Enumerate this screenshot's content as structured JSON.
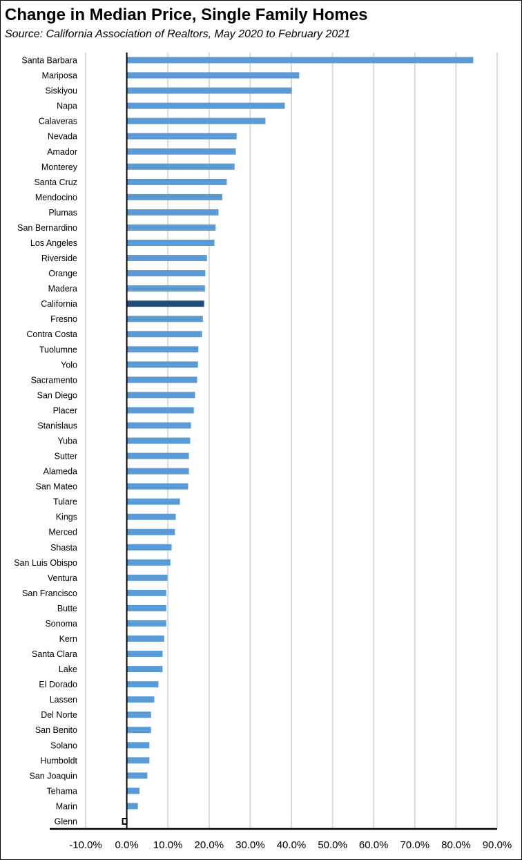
{
  "chart_data": {
    "type": "bar",
    "orientation": "horizontal",
    "title": "Change in Median Price, Single Family Homes",
    "subtitle": "Source:  California Association of Realtors, May 2020 to February 2021",
    "xlabel": "",
    "ylabel": "",
    "xlim": [
      -10,
      90
    ],
    "xticks": [
      "-10.0%",
      "0.0%",
      "10.0%",
      "20.0%",
      "30.0%",
      "40.0%",
      "50.0%",
      "60.0%",
      "70.0%",
      "80.0%",
      "90.0%"
    ],
    "grid": true,
    "colors": {
      "default": "#5b9bd5",
      "highlight": "#1f4e79"
    },
    "highlight": "California",
    "categories": [
      "Santa Barbara",
      "Mariposa",
      "Siskiyou",
      "Napa",
      "Calaveras",
      "Nevada",
      "Amador",
      "Monterey",
      "Santa Cruz",
      "Mendocino",
      "Plumas",
      "San Bernardino",
      "Los Angeles",
      "Riverside",
      "Orange",
      "Madera",
      "California",
      "Fresno",
      "Contra Costa",
      "Tuolumne",
      "Yolo",
      "Sacramento",
      "San Diego",
      "Placer",
      "Stanislaus",
      "Yuba",
      "Sutter",
      "Alameda",
      "San Mateo",
      "Tulare",
      "Kings",
      "Merced",
      "Shasta",
      "San Luis Obispo",
      "Ventura",
      "San Francisco",
      "Butte",
      "Sonoma",
      "Kern",
      "Santa Clara",
      "Lake",
      "El Dorado",
      "Lassen",
      "Del Norte",
      "San Benito",
      "Solano",
      "Humboldt",
      "San Joaquin",
      "Tehama",
      "Marin",
      "Glenn"
    ],
    "values": [
      84.2,
      41.9,
      40.1,
      38.4,
      33.7,
      26.7,
      26.5,
      26.2,
      24.3,
      23.2,
      22.3,
      21.6,
      21.3,
      19.5,
      19.1,
      19.0,
      18.8,
      18.5,
      18.3,
      17.4,
      17.3,
      17.1,
      16.6,
      16.3,
      15.6,
      15.4,
      15.1,
      15.1,
      14.9,
      12.9,
      11.9,
      11.7,
      10.9,
      10.6,
      9.9,
      9.6,
      9.6,
      9.6,
      9.1,
      8.7,
      8.7,
      7.7,
      6.7,
      5.9,
      5.9,
      5.5,
      5.5,
      5.0,
      3.1,
      2.7,
      -1.0
    ]
  }
}
